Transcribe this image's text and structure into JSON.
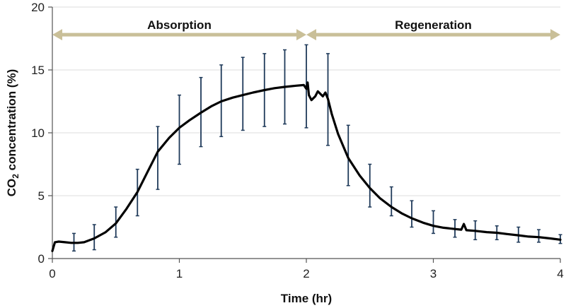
{
  "chart_data": {
    "type": "line",
    "title": "",
    "xlabel": "Time (hr)",
    "ylabel_main": "CO",
    "ylabel_sub": "2",
    "ylabel_rest": " concentration (%)",
    "xlim": [
      0,
      4
    ],
    "ylim": [
      0,
      20
    ],
    "x_ticks": [
      0,
      1,
      2,
      3,
      4
    ],
    "y_ticks": [
      0,
      5,
      10,
      15,
      20
    ],
    "grid": "horizontal",
    "colors": {
      "line": "#000000",
      "error_bar": "#1f3a5a",
      "arrow": "#c9bf98",
      "grid": "#dddddd",
      "axis": "#555555"
    },
    "phases": [
      {
        "label": "Absorption",
        "start": 0,
        "end": 2
      },
      {
        "label": "Regeneration",
        "start": 2,
        "end": 4
      }
    ],
    "phase_arrow_y": 17.8,
    "series": [
      {
        "name": "CO2 concentration",
        "x": [
          0,
          0.02,
          0.05,
          0.1,
          0.15,
          0.2,
          0.25,
          0.33,
          0.42,
          0.5,
          0.58,
          0.67,
          0.75,
          0.83,
          0.92,
          1.0,
          1.08,
          1.17,
          1.25,
          1.33,
          1.42,
          1.5,
          1.58,
          1.67,
          1.75,
          1.83,
          1.92,
          1.98,
          2.0,
          2.01,
          2.02,
          2.04,
          2.07,
          2.09,
          2.11,
          2.13,
          2.15,
          2.17,
          2.2,
          2.25,
          2.33,
          2.42,
          2.5,
          2.58,
          2.67,
          2.75,
          2.83,
          2.92,
          3.0,
          3.08,
          3.17,
          3.22,
          3.24,
          3.26,
          3.33,
          3.42,
          3.5,
          3.58,
          3.67,
          3.75,
          3.83,
          3.92,
          4.0
        ],
        "y": [
          0.6,
          1.3,
          1.35,
          1.3,
          1.25,
          1.25,
          1.3,
          1.6,
          2.1,
          2.8,
          3.9,
          5.3,
          6.9,
          8.5,
          9.6,
          10.4,
          11.0,
          11.6,
          12.1,
          12.5,
          12.8,
          13.0,
          13.2,
          13.4,
          13.55,
          13.65,
          13.75,
          13.8,
          13.5,
          14.0,
          13.0,
          12.6,
          12.9,
          13.3,
          13.1,
          12.9,
          13.2,
          12.7,
          11.5,
          9.9,
          8.0,
          6.6,
          5.6,
          4.8,
          4.1,
          3.6,
          3.2,
          2.85,
          2.6,
          2.45,
          2.35,
          2.3,
          2.75,
          2.25,
          2.2,
          2.1,
          2.05,
          1.95,
          1.85,
          1.75,
          1.7,
          1.6,
          1.5
        ]
      }
    ],
    "error_bars": {
      "x": [
        0.17,
        0.33,
        0.5,
        0.67,
        0.83,
        1.0,
        1.17,
        1.33,
        1.5,
        1.67,
        1.83,
        2.0,
        2.17,
        2.33,
        2.5,
        2.67,
        2.83,
        3.0,
        3.17,
        3.33,
        3.5,
        3.67,
        3.83,
        4.0
      ],
      "low": [
        0.6,
        0.7,
        1.7,
        3.4,
        5.5,
        7.5,
        8.9,
        9.7,
        10.2,
        10.5,
        10.7,
        10.4,
        9.0,
        5.8,
        4.1,
        3.4,
        2.5,
        2.0,
        1.7,
        1.5,
        1.5,
        1.3,
        1.3,
        1.2
      ],
      "high": [
        2.0,
        2.7,
        4.1,
        7.1,
        10.5,
        13.0,
        14.4,
        15.4,
        16.0,
        16.3,
        16.6,
        17.0,
        16.3,
        10.6,
        7.5,
        5.7,
        4.6,
        3.8,
        3.1,
        3.0,
        2.6,
        2.5,
        2.3,
        1.9
      ]
    }
  }
}
